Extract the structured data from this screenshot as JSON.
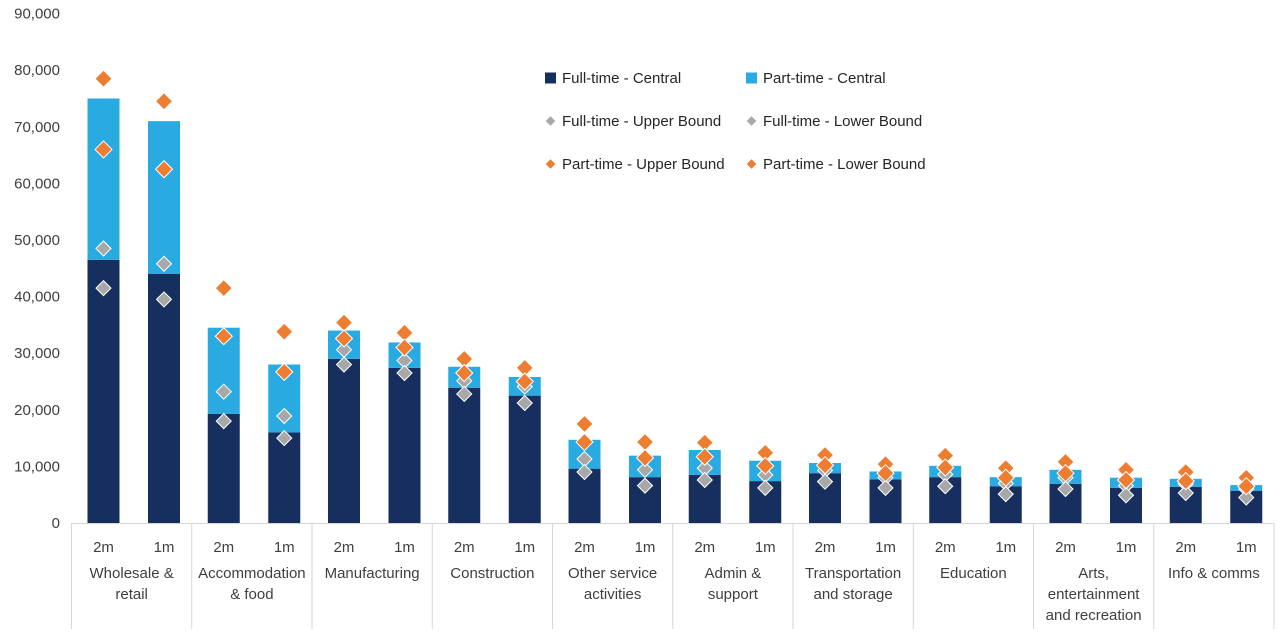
{
  "chart_data": {
    "type": "bar",
    "subtype": "stacked-bars-with-bound-diamond-markers",
    "title": "",
    "xlabel": "",
    "ylabel": "",
    "ylim": [
      0,
      90000
    ],
    "ytick_step": 10000,
    "ytick_labels": [
      "0",
      "10,000",
      "20,000",
      "30,000",
      "40,000",
      "50,000",
      "60,000",
      "70,000",
      "80,000",
      "90,000"
    ],
    "grid": false,
    "legend_position": "top-center",
    "colors": {
      "full_time_central": "#172F5E",
      "part_time_central": "#29ABE2",
      "full_time_bounds": "#A8A8A8",
      "part_time_bounds": "#ED7D31",
      "axis_text": "#3F3F3F",
      "legend_text": "#262626",
      "axis_line": "#D6D6D6",
      "background": "#FFFFFF"
    },
    "legend": [
      {
        "label": "Full-time -  Central",
        "marker": "square",
        "color_key": "full_time_central"
      },
      {
        "label": "Part-time - Central",
        "marker": "square",
        "color_key": "part_time_central"
      },
      {
        "label": "Full-time -  Upper Bound",
        "marker": "diamond",
        "color_key": "full_time_bounds"
      },
      {
        "label": "Full-time -  Lower Bound",
        "marker": "diamond",
        "color_key": "full_time_bounds"
      },
      {
        "label": "Part-time - Upper Bound",
        "marker": "diamond",
        "color_key": "part_time_bounds"
      },
      {
        "label": "Part-time - Lower Bound",
        "marker": "diamond",
        "color_key": "part_time_bounds"
      }
    ],
    "bar_labels": [
      "2m",
      "1m"
    ],
    "categories": [
      {
        "label": "Wholesale & retail",
        "label_lines": [
          "Wholesale &",
          "retail"
        ],
        "bars": [
          {
            "label": "2m",
            "full_time_central": 46500,
            "part_time_central": 28500,
            "stack_total": 75000,
            "full_time_upper": 48500,
            "full_time_lower": 41500,
            "part_time_upper": 78500,
            "part_time_lower": 66000
          },
          {
            "label": "1m",
            "full_time_central": 44000,
            "part_time_central": 27000,
            "stack_total": 71000,
            "full_time_upper": 45800,
            "full_time_lower": 39500,
            "part_time_upper": 74500,
            "part_time_lower": 62500
          }
        ]
      },
      {
        "label": "Accommodation & food",
        "label_lines": [
          "Accommodation",
          "& food"
        ],
        "bars": [
          {
            "label": "2m",
            "full_time_central": 19300,
            "part_time_central": 15200,
            "stack_total": 34500,
            "full_time_upper": 23200,
            "full_time_lower": 18000,
            "part_time_upper": 41500,
            "part_time_lower": 33000
          },
          {
            "label": "1m",
            "full_time_central": 16000,
            "part_time_central": 12000,
            "stack_total": 28000,
            "full_time_upper": 18900,
            "full_time_lower": 15000,
            "part_time_upper": 33800,
            "part_time_lower": 26700
          }
        ]
      },
      {
        "label": "Manufacturing",
        "label_lines": [
          "Manufacturing"
        ],
        "bars": [
          {
            "label": "2m",
            "full_time_central": 29000,
            "part_time_central": 5000,
            "stack_total": 34000,
            "full_time_upper": 30600,
            "full_time_lower": 28000,
            "part_time_upper": 35400,
            "part_time_lower": 32600
          },
          {
            "label": "1m",
            "full_time_central": 27400,
            "part_time_central": 4500,
            "stack_total": 31900,
            "full_time_upper": 28700,
            "full_time_lower": 26500,
            "part_time_upper": 33600,
            "part_time_lower": 31000
          }
        ]
      },
      {
        "label": "Construction",
        "label_lines": [
          "Construction"
        ],
        "bars": [
          {
            "label": "2m",
            "full_time_central": 23900,
            "part_time_central": 3700,
            "stack_total": 27600,
            "full_time_upper": 25100,
            "full_time_lower": 22800,
            "part_time_upper": 29000,
            "part_time_lower": 26500
          },
          {
            "label": "1m",
            "full_time_central": 22500,
            "part_time_central": 3300,
            "stack_total": 25800,
            "full_time_upper": 24100,
            "full_time_lower": 21200,
            "part_time_upper": 27400,
            "part_time_lower": 25000
          }
        ]
      },
      {
        "label": "Other service activities",
        "label_lines": [
          "Other service",
          "activities"
        ],
        "bars": [
          {
            "label": "2m",
            "full_time_central": 9600,
            "part_time_central": 5100,
            "stack_total": 14700,
            "full_time_upper": 11300,
            "full_time_lower": 9000,
            "part_time_upper": 17500,
            "part_time_lower": 14300
          },
          {
            "label": "1m",
            "full_time_central": 8100,
            "part_time_central": 3800,
            "stack_total": 11900,
            "full_time_upper": 9400,
            "full_time_lower": 6600,
            "part_time_upper": 14300,
            "part_time_lower": 11500
          }
        ]
      },
      {
        "label": "Admin & support",
        "label_lines": [
          "Admin &",
          "support"
        ],
        "bars": [
          {
            "label": "2m",
            "full_time_central": 8500,
            "part_time_central": 4400,
            "stack_total": 12900,
            "full_time_upper": 9700,
            "full_time_lower": 7600,
            "part_time_upper": 14200,
            "part_time_lower": 11700
          },
          {
            "label": "1m",
            "full_time_central": 7400,
            "part_time_central": 3600,
            "stack_total": 11000,
            "full_time_upper": 8500,
            "full_time_lower": 6200,
            "part_time_upper": 12400,
            "part_time_lower": 10100
          }
        ]
      },
      {
        "label": "Transportation and storage",
        "label_lines": [
          "Transportation",
          "and storage"
        ],
        "bars": [
          {
            "label": "2m",
            "full_time_central": 8800,
            "part_time_central": 1800,
            "stack_total": 10600,
            "full_time_upper": 9300,
            "full_time_lower": 7300,
            "part_time_upper": 12000,
            "part_time_lower": 10200
          },
          {
            "label": "1m",
            "full_time_central": 7700,
            "part_time_central": 1400,
            "stack_total": 9100,
            "full_time_upper": 8000,
            "full_time_lower": 6200,
            "part_time_upper": 10400,
            "part_time_lower": 8800
          }
        ]
      },
      {
        "label": "Education",
        "label_lines": [
          "Education"
        ],
        "bars": [
          {
            "label": "2m",
            "full_time_central": 8100,
            "part_time_central": 2000,
            "stack_total": 10100,
            "full_time_upper": 8600,
            "full_time_lower": 6500,
            "part_time_upper": 11900,
            "part_time_lower": 9800
          },
          {
            "label": "1m",
            "full_time_central": 6500,
            "part_time_central": 1600,
            "stack_total": 8100,
            "full_time_upper": 7000,
            "full_time_lower": 5100,
            "part_time_upper": 9700,
            "part_time_lower": 8000
          }
        ]
      },
      {
        "label": "Arts, entertainment and recreation",
        "label_lines": [
          "Arts,",
          "entertainment",
          "and recreation"
        ],
        "bars": [
          {
            "label": "2m",
            "full_time_central": 6900,
            "part_time_central": 2500,
            "stack_total": 9400,
            "full_time_upper": 8000,
            "full_time_lower": 6000,
            "part_time_upper": 10800,
            "part_time_lower": 8800
          },
          {
            "label": "1m",
            "full_time_central": 6200,
            "part_time_central": 1800,
            "stack_total": 8000,
            "full_time_upper": 6600,
            "full_time_lower": 4900,
            "part_time_upper": 9400,
            "part_time_lower": 7600
          }
        ]
      },
      {
        "label": "Info & comms",
        "label_lines": [
          "Info & comms"
        ],
        "bars": [
          {
            "label": "2m",
            "full_time_central": 6400,
            "part_time_central": 1400,
            "stack_total": 7800,
            "full_time_upper": 6900,
            "full_time_lower": 5300,
            "part_time_upper": 9000,
            "part_time_lower": 7400
          },
          {
            "label": "1m",
            "full_time_central": 5700,
            "part_time_central": 1000,
            "stack_total": 6700,
            "full_time_upper": 6000,
            "full_time_lower": 4500,
            "part_time_upper": 8000,
            "part_time_lower": 6500
          }
        ]
      }
    ]
  }
}
